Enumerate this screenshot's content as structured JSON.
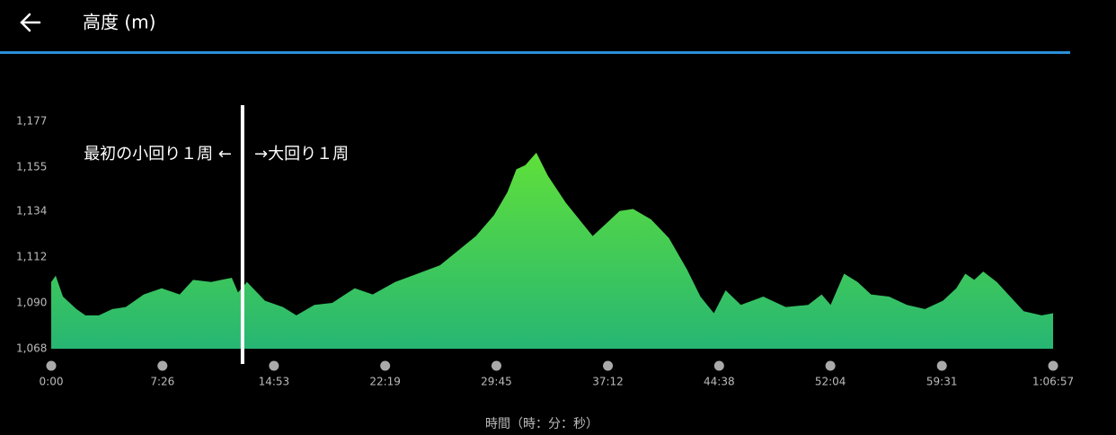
{
  "header": {
    "title": "高度 (m)"
  },
  "chart_data": {
    "type": "area",
    "xlabel": "時間（時：分：秒）",
    "annotations": [
      "最初の小回り１周 ←",
      "→大回り１周"
    ],
    "marker_x": 767,
    "color_top": "#5fe03a",
    "color_bottom": "#27b673",
    "x": [
      0,
      18,
      47,
      101,
      137,
      191,
      245,
      299,
      371,
      443,
      515,
      569,
      641,
      724,
      749,
      785,
      857,
      929,
      983,
      1055,
      1127,
      1217,
      1289,
      1379,
      1469,
      1559,
      1631,
      1703,
      1775,
      1829,
      1865,
      1901,
      1945,
      1991,
      2063,
      2117,
      2171,
      2225,
      2279,
      2333,
      2405,
      2477,
      2549,
      2603,
      2657,
      2704,
      2765,
      2855,
      2945,
      3035,
      3089,
      3125,
      3179,
      3233,
      3287,
      3359,
      3431,
      3503,
      3575,
      3629,
      3665,
      3701,
      3737,
      3791,
      3845,
      3899,
      3971,
      4017
    ],
    "values": [
      1100,
      1103,
      1093,
      1087,
      1084,
      1084,
      1087,
      1088,
      1094,
      1097,
      1094,
      1101,
      1100,
      1102,
      1095,
      1100,
      1091,
      1088,
      1084,
      1089,
      1090,
      1097,
      1094,
      1100,
      1104,
      1108,
      1115,
      1122,
      1132,
      1143,
      1154,
      1156,
      1162,
      1151,
      1138,
      1130,
      1122,
      1128,
      1134,
      1135,
      1130,
      1121,
      1106,
      1093,
      1085,
      1096,
      1089,
      1093,
      1088,
      1089,
      1094,
      1089,
      1104,
      1100,
      1094,
      1093,
      1089,
      1087,
      1091,
      1097,
      1104,
      1101,
      1105,
      1100,
      1093,
      1086,
      1084,
      1085
    ],
    "xlim": [
      0,
      4017
    ],
    "xticks": [
      {
        "value": 0,
        "label": "0:00"
      },
      {
        "value": 446,
        "label": "7:26"
      },
      {
        "value": 893,
        "label": "14:53"
      },
      {
        "value": 1339,
        "label": "22:19"
      },
      {
        "value": 1785,
        "label": "29:45"
      },
      {
        "value": 2232,
        "label": "37:12"
      },
      {
        "value": 2678,
        "label": "44:38"
      },
      {
        "value": 3124,
        "label": "52:04"
      },
      {
        "value": 3571,
        "label": "59:31"
      },
      {
        "value": 4017,
        "label": "1:06:57"
      }
    ],
    "ylim": [
      1068,
      1177
    ],
    "yticks": [
      {
        "value": 1068,
        "label": "1,068"
      },
      {
        "value": 1090,
        "label": "1,090"
      },
      {
        "value": 1112,
        "label": "1,112"
      },
      {
        "value": 1134,
        "label": "1,134"
      },
      {
        "value": 1155,
        "label": "1,155"
      },
      {
        "value": 1177,
        "label": "1,177"
      }
    ],
    "grid": false
  }
}
